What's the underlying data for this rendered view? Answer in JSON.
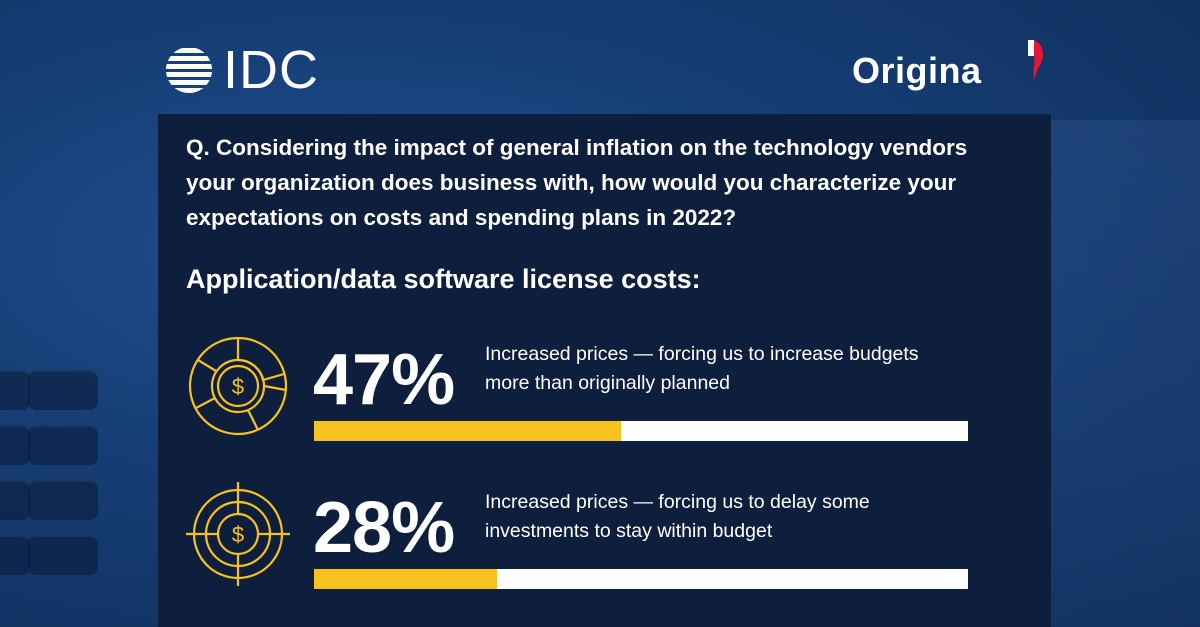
{
  "brand": {
    "left_logo": "IDC",
    "right_logo": "Origina",
    "accent_yellow": "#f7c21f",
    "origina_red": "#e4173b",
    "panel_color": "#0e1f3d"
  },
  "question": "Q. Considering the impact of general inflation on the technology vendors your organization does business with, how would you characterize your expectations on costs and spending plans in 2022?",
  "subtitle": "Application/data software license costs:",
  "stats": [
    {
      "percent_label": "47%",
      "value": 47,
      "description": "Increased prices — forcing us to increase budgets more than originally planned",
      "icon": "dollar-pie-chart-icon"
    },
    {
      "percent_label": "28%",
      "value": 28,
      "description": "Increased prices — forcing us to delay some investments to stay within budget",
      "icon": "dollar-target-icon"
    }
  ]
}
